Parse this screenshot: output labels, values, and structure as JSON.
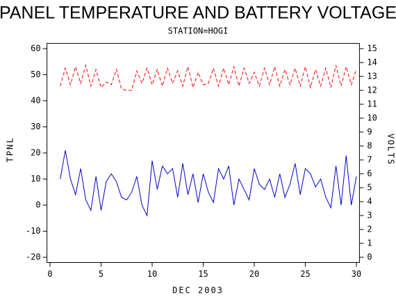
{
  "chart_data": {
    "type": "line",
    "title": "PANEL TEMPERATURE AND BATTERY VOLTAGE",
    "subtitle": "STATION=HOGI",
    "x_label": "DEC 2003",
    "x": [
      1.0,
      1.5,
      2.0,
      2.5,
      3.0,
      3.5,
      4.0,
      4.5,
      5.0,
      5.5,
      6.0,
      6.5,
      7.0,
      7.5,
      8.0,
      8.5,
      9.0,
      9.5,
      10.0,
      10.5,
      11.0,
      11.5,
      12.0,
      12.5,
      13.0,
      13.5,
      14.0,
      14.5,
      15.0,
      15.5,
      16.0,
      16.5,
      17.0,
      17.5,
      18.0,
      18.5,
      19.0,
      19.5,
      20.0,
      20.5,
      21.0,
      21.5,
      22.0,
      22.5,
      23.0,
      23.5,
      24.0,
      24.5,
      25.0,
      25.5,
      26.0,
      26.5,
      27.0,
      27.5,
      28.0,
      28.5,
      29.0,
      29.5,
      30.0
    ],
    "series": [
      {
        "name": "TPNL",
        "color": "#0000cc",
        "axis": "y",
        "dashed": false,
        "values": [
          10,
          21,
          10,
          4,
          14,
          2,
          -2,
          11,
          -2,
          9,
          12,
          9,
          3,
          2,
          5,
          11,
          0,
          -4,
          17,
          6,
          15,
          12,
          14,
          3,
          16,
          4,
          12,
          1,
          12,
          5,
          1,
          14,
          10,
          15,
          0,
          10,
          6,
          2,
          14,
          8,
          6,
          10,
          3,
          12,
          3,
          8,
          16,
          4,
          14,
          12,
          7,
          10,
          3,
          -1,
          15,
          0,
          19,
          0,
          11
        ]
      },
      {
        "name": "VOLTS",
        "color": "#ff0000",
        "axis": "y2",
        "dashed": true,
        "values": [
          12.3,
          13.6,
          12.4,
          13.7,
          12.5,
          13.8,
          12.3,
          13.5,
          12.2,
          12.6,
          12.4,
          13.5,
          12.1,
          12.0,
          12.0,
          13.4,
          12.5,
          13.6,
          12.4,
          13.5,
          12.3,
          13.6,
          12.5,
          13.4,
          12.3,
          13.7,
          12.2,
          13.3,
          12.4,
          12.5,
          13.6,
          12.3,
          13.6,
          12.4,
          13.7,
          12.3,
          13.6,
          12.5,
          13.3,
          12.3,
          13.6,
          12.4,
          13.7,
          12.3,
          13.5,
          12.4,
          13.6,
          12.3,
          13.7,
          12.2,
          13.5,
          12.3,
          13.6,
          12.2,
          13.8,
          12.3,
          13.7,
          12.4,
          13.5
        ]
      }
    ],
    "xlim": [
      -0.3,
      30.3
    ],
    "xticks": [
      0,
      5,
      10,
      15,
      20,
      25,
      30
    ],
    "ylim": [
      -22,
      62
    ],
    "yticks": [
      -20,
      -10,
      0,
      10,
      20,
      30,
      40,
      50,
      60
    ],
    "y2lim": [
      -0.375,
      15.375
    ],
    "y2ticks": [
      0,
      1,
      2,
      3,
      4,
      5,
      6,
      7,
      8,
      9,
      10,
      11,
      12,
      13,
      14,
      15
    ],
    "grid": false
  }
}
